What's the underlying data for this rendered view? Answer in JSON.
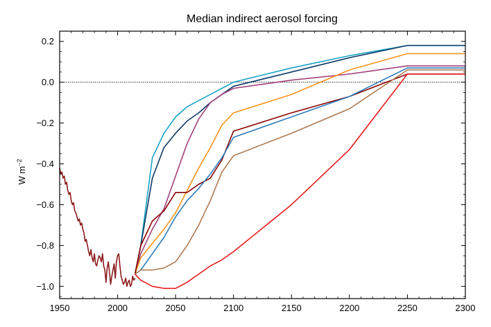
{
  "chart_data": {
    "type": "line",
    "title": "Median indirect aerosol forcing",
    "xlabel": "",
    "ylabel": "W m",
    "ylabel_superscript": "−2",
    "xlim": [
      1950,
      2300
    ],
    "ylim": [
      -1.06,
      0.25
    ],
    "xticks": [
      1950,
      2000,
      2050,
      2100,
      2150,
      2200,
      2250,
      2300
    ],
    "xtick_labels": [
      "1950",
      "2000",
      "2050",
      "2100",
      "2150",
      "2200",
      "2250",
      "2300"
    ],
    "yticks": [
      -1.0,
      -0.8,
      -0.6,
      -0.4,
      -0.2,
      0.0,
      0.2
    ],
    "ytick_labels": [
      "−1.0",
      "−0.8",
      "−0.6",
      "−0.4",
      "−0.2",
      "0.0",
      "0.2"
    ],
    "zero_line": true,
    "grid": false,
    "historical": {
      "color": "#8b1a1a",
      "x": [
        1950,
        1951,
        1952,
        1953,
        1954,
        1955,
        1956,
        1957,
        1958,
        1959,
        1960,
        1961,
        1962,
        1963,
        1964,
        1965,
        1966,
        1967,
        1968,
        1969,
        1970,
        1971,
        1972,
        1973,
        1974,
        1975,
        1976,
        1977,
        1978,
        1979,
        1980,
        1981,
        1982,
        1983,
        1984,
        1985,
        1986,
        1987,
        1988,
        1989,
        1990,
        1991,
        1992,
        1993,
        1994,
        1995,
        1996,
        1997,
        1998,
        1999,
        2000,
        2001,
        2002,
        2003,
        2004,
        2005,
        2006,
        2007,
        2008,
        2009,
        2010,
        2011,
        2012,
        2013,
        2014,
        2015
      ],
      "y": [
        -0.42,
        -0.45,
        -0.44,
        -0.47,
        -0.46,
        -0.5,
        -0.49,
        -0.53,
        -0.55,
        -0.54,
        -0.58,
        -0.6,
        -0.59,
        -0.63,
        -0.64,
        -0.66,
        -0.68,
        -0.67,
        -0.7,
        -0.69,
        -0.72,
        -0.74,
        -0.78,
        -0.77,
        -0.8,
        -0.83,
        -0.85,
        -0.82,
        -0.86,
        -0.88,
        -0.84,
        -0.89,
        -0.9,
        -0.87,
        -0.85,
        -0.86,
        -0.88,
        -0.84,
        -0.9,
        -0.92,
        -0.98,
        -0.91,
        -0.88,
        -0.93,
        -0.99,
        -0.95,
        -0.92,
        -0.89,
        -0.96,
        -0.88,
        -0.85,
        -0.84,
        -0.9,
        -0.95,
        -0.97,
        -0.99,
        -0.98,
        -0.96,
        -1.0,
        -0.98,
        -0.97,
        -1.0,
        -0.99,
        -0.95,
        -0.97,
        -0.96
      ]
    },
    "series": [
      {
        "color": "#17a2c4",
        "x": [
          2015,
          2020,
          2030,
          2040,
          2050,
          2060,
          2070,
          2080,
          2090,
          2100,
          2150,
          2200,
          2250,
          2300
        ],
        "y": [
          -0.94,
          -0.8,
          -0.37,
          -0.25,
          -0.17,
          -0.12,
          -0.09,
          -0.06,
          -0.03,
          0.0,
          0.07,
          0.13,
          0.18,
          0.18
        ]
      },
      {
        "color": "#0d3b66",
        "x": [
          2015,
          2020,
          2030,
          2040,
          2050,
          2060,
          2070,
          2080,
          2090,
          2100,
          2150,
          2200,
          2250,
          2300
        ],
        "y": [
          -0.94,
          -0.8,
          -0.47,
          -0.32,
          -0.25,
          -0.19,
          -0.15,
          -0.1,
          -0.06,
          -0.02,
          0.05,
          0.12,
          0.18,
          0.18
        ]
      },
      {
        "color": "#a0407a",
        "x": [
          2015,
          2020,
          2030,
          2040,
          2050,
          2060,
          2070,
          2080,
          2090,
          2100,
          2150,
          2200,
          2250,
          2300
        ],
        "y": [
          -0.94,
          -0.84,
          -0.72,
          -0.62,
          -0.46,
          -0.3,
          -0.18,
          -0.1,
          -0.06,
          -0.03,
          0.01,
          0.04,
          0.08,
          0.08
        ]
      },
      {
        "color": "#f5941d",
        "x": [
          2015,
          2020,
          2030,
          2040,
          2050,
          2060,
          2070,
          2080,
          2090,
          2100,
          2150,
          2200,
          2250,
          2300
        ],
        "y": [
          -0.94,
          -0.86,
          -0.79,
          -0.72,
          -0.64,
          -0.53,
          -0.42,
          -0.32,
          -0.21,
          -0.15,
          -0.06,
          0.06,
          0.14,
          0.14
        ]
      },
      {
        "color": "#8b0000",
        "x": [
          2015,
          2020,
          2030,
          2040,
          2050,
          2060,
          2070,
          2080,
          2090,
          2100,
          2150,
          2200,
          2250,
          2300
        ],
        "y": [
          -0.94,
          -0.8,
          -0.68,
          -0.63,
          -0.54,
          -0.54,
          -0.5,
          -0.47,
          -0.38,
          -0.24,
          -0.15,
          -0.07,
          0.04,
          0.04
        ]
      },
      {
        "color": "#2b7bb9",
        "x": [
          2015,
          2020,
          2030,
          2040,
          2050,
          2060,
          2070,
          2080,
          2090,
          2100,
          2150,
          2200,
          2250,
          2300
        ],
        "y": [
          -0.94,
          -0.92,
          -0.84,
          -0.76,
          -0.66,
          -0.58,
          -0.52,
          -0.45,
          -0.37,
          -0.27,
          -0.17,
          -0.07,
          0.07,
          0.07
        ]
      },
      {
        "color": "#b07850",
        "x": [
          2015,
          2020,
          2030,
          2040,
          2050,
          2060,
          2070,
          2080,
          2090,
          2100,
          2150,
          2200,
          2250,
          2300
        ],
        "y": [
          -0.94,
          -0.92,
          -0.92,
          -0.91,
          -0.88,
          -0.8,
          -0.7,
          -0.58,
          -0.44,
          -0.36,
          -0.25,
          -0.13,
          0.06,
          0.06
        ]
      },
      {
        "color": "#e41a1c",
        "x": [
          2015,
          2020,
          2030,
          2040,
          2050,
          2060,
          2070,
          2080,
          2090,
          2100,
          2150,
          2200,
          2250,
          2300
        ],
        "y": [
          -0.94,
          -0.97,
          -1.0,
          -1.01,
          -1.01,
          -0.98,
          -0.94,
          -0.9,
          -0.87,
          -0.83,
          -0.6,
          -0.33,
          0.04,
          0.04
        ]
      }
    ]
  }
}
